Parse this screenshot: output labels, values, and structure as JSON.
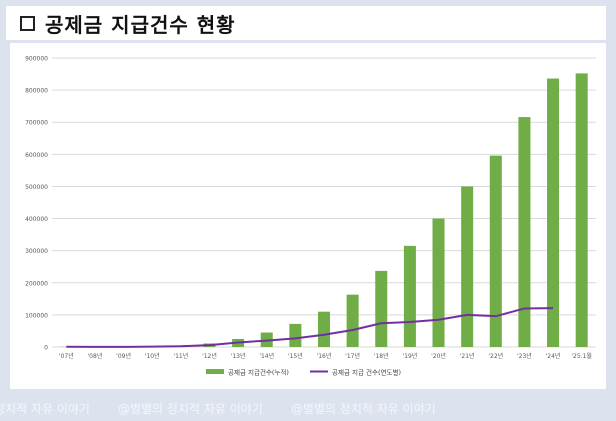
{
  "header": {
    "title": "공제금 지급건수 현황"
  },
  "chart_data": {
    "type": "bar",
    "categories": [
      "'07년",
      "'08년",
      "'09년",
      "'10년",
      "'11년",
      "'12년",
      "'13년",
      "'14년",
      "'15년",
      "'16년",
      "'17년",
      "'18년",
      "'19년",
      "'20년",
      "'21년",
      "'22년",
      "'23년",
      "'24년",
      "'25.1월"
    ],
    "series": [
      {
        "name": "공제금 지급건수(누적)",
        "type": "bar",
        "color": "#70ad47",
        "values": [
          600,
          1000,
          1500,
          2500,
          5000,
          11000,
          25000,
          45000,
          72000,
          110000,
          163000,
          237000,
          315000,
          400000,
          500000,
          596000,
          716000,
          836000,
          852000
        ]
      },
      {
        "name": "공제금 지급 건수(연도별)",
        "type": "line",
        "color": "#7030a0",
        "values": [
          600,
          400,
          500,
          1000,
          2500,
          6000,
          14000,
          20000,
          27000,
          38000,
          53000,
          74000,
          78000,
          85000,
          100000,
          96000,
          120000,
          121000,
          null
        ]
      }
    ],
    "yticks": [
      "0",
      "100000",
      "200000",
      "300000",
      "400000",
      "500000",
      "600000",
      "700000",
      "800000",
      "900000"
    ],
    "ylim": [
      0,
      900000
    ],
    "grid": true,
    "legend_position": "bottom"
  },
  "watermarks": [
    "정치적 자유 이야기",
    "@별별의 정치적 자유 이야기",
    "@별별의 정치적 자유 이야기"
  ]
}
